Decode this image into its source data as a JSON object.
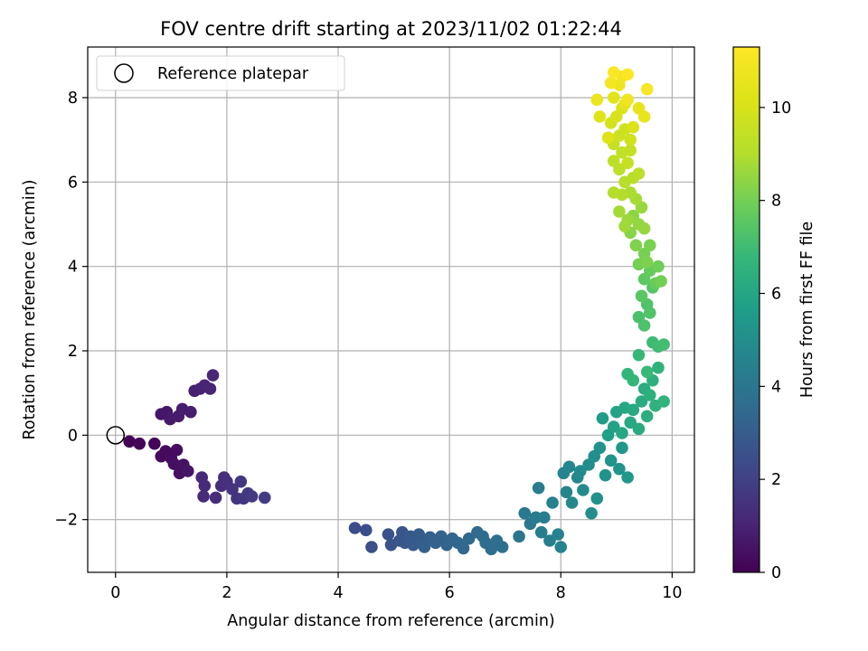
{
  "chart_data": {
    "type": "scatter",
    "title": "FOV centre drift starting at 2023/11/02 01:22:44",
    "xlabel": "Angular distance from reference (arcmin)",
    "ylabel": "Rotation from reference (arcmin)",
    "xlim": [
      -0.5,
      10.4
    ],
    "ylim": [
      -3.25,
      9.2
    ],
    "xticks": [
      "0",
      "2",
      "4",
      "6",
      "8",
      "10"
    ],
    "yticks": [
      "−2",
      "0",
      "2",
      "4",
      "6",
      "8"
    ],
    "grid": true,
    "legend": {
      "position": "top-left",
      "label": "Reference platepar"
    },
    "reference_point": {
      "x": 0,
      "y": 0
    },
    "colorbar": {
      "label": "Hours from first FF file",
      "colormap": "viridis",
      "range": [
        0,
        11.3
      ],
      "ticks": [
        "0",
        "2",
        "4",
        "6",
        "8",
        "10"
      ]
    },
    "series": [
      {
        "points": [
          {
            "x": 0.25,
            "y": -0.15,
            "c": 0.05
          },
          {
            "x": 0.43,
            "y": -0.2,
            "c": 0.1
          },
          {
            "x": 0.7,
            "y": -0.2,
            "c": 0.15
          },
          {
            "x": 0.82,
            "y": -0.5,
            "c": 0.2
          },
          {
            "x": 0.9,
            "y": -0.38,
            "c": 0.25
          },
          {
            "x": 1.0,
            "y": -0.55,
            "c": 0.3
          },
          {
            "x": 1.1,
            "y": -0.35,
            "c": 0.35
          },
          {
            "x": 1.05,
            "y": -0.68,
            "c": 0.4
          },
          {
            "x": 1.15,
            "y": -0.9,
            "c": 0.45
          },
          {
            "x": 1.22,
            "y": -0.7,
            "c": 0.5
          },
          {
            "x": 1.3,
            "y": -0.85,
            "c": 0.55
          },
          {
            "x": 0.82,
            "y": 0.5,
            "c": 0.6
          },
          {
            "x": 0.92,
            "y": 0.55,
            "c": 0.65
          },
          {
            "x": 0.98,
            "y": 0.38,
            "c": 0.7
          },
          {
            "x": 1.13,
            "y": 0.45,
            "c": 0.75
          },
          {
            "x": 1.2,
            "y": 0.62,
            "c": 0.8
          },
          {
            "x": 1.35,
            "y": 0.55,
            "c": 0.85
          },
          {
            "x": 1.42,
            "y": 1.05,
            "c": 0.9
          },
          {
            "x": 1.52,
            "y": 1.1,
            "c": 0.95
          },
          {
            "x": 1.6,
            "y": 1.18,
            "c": 1.0
          },
          {
            "x": 1.7,
            "y": 1.1,
            "c": 1.05
          },
          {
            "x": 1.75,
            "y": 1.42,
            "c": 1.1
          },
          {
            "x": 1.55,
            "y": -1.0,
            "c": 1.15
          },
          {
            "x": 1.6,
            "y": -1.2,
            "c": 1.2
          },
          {
            "x": 1.58,
            "y": -1.45,
            "c": 1.25
          },
          {
            "x": 1.8,
            "y": -1.48,
            "c": 1.3
          },
          {
            "x": 1.9,
            "y": -1.2,
            "c": 1.35
          },
          {
            "x": 1.95,
            "y": -1.0,
            "c": 1.4
          },
          {
            "x": 2.0,
            "y": -1.1,
            "c": 1.45
          },
          {
            "x": 2.1,
            "y": -1.28,
            "c": 1.5
          },
          {
            "x": 2.18,
            "y": -1.5,
            "c": 1.55
          },
          {
            "x": 2.25,
            "y": -1.1,
            "c": 1.6
          },
          {
            "x": 2.3,
            "y": -1.5,
            "c": 1.65
          },
          {
            "x": 2.38,
            "y": -1.38,
            "c": 1.7
          },
          {
            "x": 2.45,
            "y": -1.45,
            "c": 1.75
          },
          {
            "x": 2.68,
            "y": -1.48,
            "c": 1.8
          },
          {
            "x": 4.3,
            "y": -2.2,
            "c": 2.4
          },
          {
            "x": 4.5,
            "y": -2.25,
            "c": 2.45
          },
          {
            "x": 4.6,
            "y": -2.65,
            "c": 2.5
          },
          {
            "x": 4.9,
            "y": -2.35,
            "c": 2.6
          },
          {
            "x": 4.95,
            "y": -2.6,
            "c": 2.65
          },
          {
            "x": 5.1,
            "y": -2.5,
            "c": 2.7
          },
          {
            "x": 5.15,
            "y": -2.3,
            "c": 2.75
          },
          {
            "x": 5.2,
            "y": -2.55,
            "c": 2.8
          },
          {
            "x": 5.3,
            "y": -2.4,
            "c": 2.85
          },
          {
            "x": 5.35,
            "y": -2.6,
            "c": 2.9
          },
          {
            "x": 5.45,
            "y": -2.35,
            "c": 2.95
          },
          {
            "x": 5.5,
            "y": -2.5,
            "c": 3.0
          },
          {
            "x": 5.55,
            "y": -2.65,
            "c": 3.05
          },
          {
            "x": 5.65,
            "y": -2.42,
            "c": 3.1
          },
          {
            "x": 5.75,
            "y": -2.55,
            "c": 3.15
          },
          {
            "x": 5.85,
            "y": -2.4,
            "c": 3.2
          },
          {
            "x": 5.95,
            "y": -2.6,
            "c": 3.25
          },
          {
            "x": 6.05,
            "y": -2.45,
            "c": 3.3
          },
          {
            "x": 6.15,
            "y": -2.55,
            "c": 3.35
          },
          {
            "x": 6.25,
            "y": -2.68,
            "c": 3.4
          },
          {
            "x": 6.35,
            "y": -2.45,
            "c": 3.45
          },
          {
            "x": 6.5,
            "y": -2.3,
            "c": 3.5
          },
          {
            "x": 6.6,
            "y": -2.4,
            "c": 3.55
          },
          {
            "x": 6.65,
            "y": -2.55,
            "c": 3.6
          },
          {
            "x": 6.75,
            "y": -2.7,
            "c": 3.65
          },
          {
            "x": 6.85,
            "y": -2.5,
            "c": 3.7
          },
          {
            "x": 6.95,
            "y": -2.65,
            "c": 3.75
          },
          {
            "x": 7.25,
            "y": -2.4,
            "c": 4.0
          },
          {
            "x": 7.35,
            "y": -1.85,
            "c": 4.1
          },
          {
            "x": 7.45,
            "y": -2.1,
            "c": 4.15
          },
          {
            "x": 7.55,
            "y": -1.95,
            "c": 4.2
          },
          {
            "x": 7.6,
            "y": -1.25,
            "c": 4.25
          },
          {
            "x": 7.65,
            "y": -2.3,
            "c": 4.3
          },
          {
            "x": 7.7,
            "y": -1.95,
            "c": 4.35
          },
          {
            "x": 7.8,
            "y": -2.5,
            "c": 4.4
          },
          {
            "x": 7.85,
            "y": -1.6,
            "c": 4.45
          },
          {
            "x": 7.95,
            "y": -2.35,
            "c": 4.5
          },
          {
            "x": 8.0,
            "y": -2.65,
            "c": 4.55
          },
          {
            "x": 8.05,
            "y": -0.9,
            "c": 4.6
          },
          {
            "x": 8.1,
            "y": -1.35,
            "c": 4.65
          },
          {
            "x": 8.15,
            "y": -0.75,
            "c": 4.7
          },
          {
            "x": 8.2,
            "y": -1.6,
            "c": 4.75
          },
          {
            "x": 8.3,
            "y": -1.0,
            "c": 4.8
          },
          {
            "x": 8.35,
            "y": -0.85,
            "c": 4.85
          },
          {
            "x": 8.4,
            "y": -1.3,
            "c": 4.9
          },
          {
            "x": 8.5,
            "y": -0.7,
            "c": 4.95
          },
          {
            "x": 8.55,
            "y": -1.85,
            "c": 5.0
          },
          {
            "x": 8.6,
            "y": -0.5,
            "c": 5.05
          },
          {
            "x": 8.65,
            "y": -1.5,
            "c": 5.1
          },
          {
            "x": 8.7,
            "y": -0.3,
            "c": 5.15
          },
          {
            "x": 8.8,
            "y": -0.95,
            "c": 5.2
          },
          {
            "x": 8.9,
            "y": -0.6,
            "c": 5.25
          },
          {
            "x": 9.05,
            "y": -0.8,
            "c": 5.3
          },
          {
            "x": 9.1,
            "y": -0.3,
            "c": 5.35
          },
          {
            "x": 9.2,
            "y": -1.0,
            "c": 5.4
          },
          {
            "x": 8.75,
            "y": 0.4,
            "c": 5.6
          },
          {
            "x": 8.85,
            "y": 0.0,
            "c": 5.7
          },
          {
            "x": 8.95,
            "y": 0.2,
            "c": 5.8
          },
          {
            "x": 9.0,
            "y": 0.55,
            "c": 5.9
          },
          {
            "x": 9.1,
            "y": 0.05,
            "c": 6.0
          },
          {
            "x": 9.15,
            "y": 0.65,
            "c": 6.05
          },
          {
            "x": 9.25,
            "y": 0.3,
            "c": 6.1
          },
          {
            "x": 9.3,
            "y": 0.6,
            "c": 6.15
          },
          {
            "x": 9.4,
            "y": 0.15,
            "c": 6.2
          },
          {
            "x": 9.45,
            "y": 0.8,
            "c": 6.25
          },
          {
            "x": 9.5,
            "y": 1.1,
            "c": 6.3
          },
          {
            "x": 9.55,
            "y": 0.45,
            "c": 6.35
          },
          {
            "x": 9.6,
            "y": 0.95,
            "c": 6.4
          },
          {
            "x": 9.65,
            "y": 1.3,
            "c": 6.45
          },
          {
            "x": 9.7,
            "y": 0.7,
            "c": 6.5
          },
          {
            "x": 9.75,
            "y": 1.6,
            "c": 6.55
          },
          {
            "x": 9.85,
            "y": 0.8,
            "c": 6.6
          },
          {
            "x": 9.2,
            "y": 1.45,
            "c": 6.7
          },
          {
            "x": 9.3,
            "y": 1.3,
            "c": 6.75
          },
          {
            "x": 9.4,
            "y": 1.9,
            "c": 6.8
          },
          {
            "x": 9.55,
            "y": 1.5,
            "c": 6.85
          },
          {
            "x": 9.65,
            "y": 2.2,
            "c": 6.95
          },
          {
            "x": 9.75,
            "y": 2.1,
            "c": 7.0
          },
          {
            "x": 9.85,
            "y": 2.15,
            "c": 7.05
          },
          {
            "x": 9.4,
            "y": 2.8,
            "c": 7.2
          },
          {
            "x": 9.5,
            "y": 2.6,
            "c": 7.25
          },
          {
            "x": 9.55,
            "y": 3.1,
            "c": 7.3
          },
          {
            "x": 9.6,
            "y": 2.9,
            "c": 7.35
          },
          {
            "x": 9.65,
            "y": 3.5,
            "c": 7.4
          },
          {
            "x": 9.45,
            "y": 3.3,
            "c": 7.5
          },
          {
            "x": 9.5,
            "y": 3.7,
            "c": 7.6
          },
          {
            "x": 9.6,
            "y": 3.9,
            "c": 7.7
          },
          {
            "x": 9.7,
            "y": 3.6,
            "c": 7.8
          },
          {
            "x": 9.75,
            "y": 4.0,
            "c": 7.9
          },
          {
            "x": 9.8,
            "y": 3.65,
            "c": 7.95
          },
          {
            "x": 9.4,
            "y": 4.05,
            "c": 8.0
          },
          {
            "x": 9.5,
            "y": 4.3,
            "c": 8.05
          },
          {
            "x": 9.6,
            "y": 4.5,
            "c": 8.1
          },
          {
            "x": 9.55,
            "y": 4.1,
            "c": 8.15
          },
          {
            "x": 9.35,
            "y": 4.5,
            "c": 8.2
          },
          {
            "x": 9.25,
            "y": 4.8,
            "c": 8.3
          },
          {
            "x": 9.3,
            "y": 5.2,
            "c": 8.4
          },
          {
            "x": 9.4,
            "y": 5.0,
            "c": 8.5
          },
          {
            "x": 9.5,
            "y": 4.9,
            "c": 8.55
          },
          {
            "x": 9.45,
            "y": 5.4,
            "c": 8.6
          },
          {
            "x": 9.2,
            "y": 5.1,
            "c": 8.65
          },
          {
            "x": 9.15,
            "y": 4.95,
            "c": 8.7
          },
          {
            "x": 9.05,
            "y": 5.3,
            "c": 8.75
          },
          {
            "x": 9.35,
            "y": 5.6,
            "c": 8.8
          },
          {
            "x": 9.25,
            "y": 5.75,
            "c": 8.9
          },
          {
            "x": 9.1,
            "y": 5.7,
            "c": 9.0
          },
          {
            "x": 8.95,
            "y": 5.75,
            "c": 9.05
          },
          {
            "x": 9.15,
            "y": 6.0,
            "c": 9.1
          },
          {
            "x": 9.3,
            "y": 6.1,
            "c": 9.15
          },
          {
            "x": 9.4,
            "y": 6.2,
            "c": 9.2
          },
          {
            "x": 9.05,
            "y": 6.3,
            "c": 9.25
          },
          {
            "x": 8.95,
            "y": 6.5,
            "c": 9.3
          },
          {
            "x": 9.1,
            "y": 6.7,
            "c": 9.4
          },
          {
            "x": 9.25,
            "y": 6.75,
            "c": 9.45
          },
          {
            "x": 9.2,
            "y": 6.45,
            "c": 9.5
          },
          {
            "x": 8.95,
            "y": 6.9,
            "c": 9.55
          },
          {
            "x": 9.05,
            "y": 7.1,
            "c": 9.65
          },
          {
            "x": 9.15,
            "y": 7.25,
            "c": 9.75
          },
          {
            "x": 9.25,
            "y": 7.0,
            "c": 9.8
          },
          {
            "x": 8.9,
            "y": 7.4,
            "c": 9.9
          },
          {
            "x": 9.0,
            "y": 7.55,
            "c": 10.0
          },
          {
            "x": 9.1,
            "y": 7.75,
            "c": 10.1
          },
          {
            "x": 9.3,
            "y": 7.3,
            "c": 10.15
          },
          {
            "x": 8.85,
            "y": 7.05,
            "c": 10.2
          },
          {
            "x": 8.7,
            "y": 7.55,
            "c": 10.3
          },
          {
            "x": 8.95,
            "y": 8.0,
            "c": 10.4
          },
          {
            "x": 9.15,
            "y": 7.85,
            "c": 10.5
          },
          {
            "x": 9.4,
            "y": 7.75,
            "c": 10.55
          },
          {
            "x": 9.5,
            "y": 7.55,
            "c": 10.6
          },
          {
            "x": 8.65,
            "y": 7.95,
            "c": 10.7
          },
          {
            "x": 9.05,
            "y": 8.3,
            "c": 10.8
          },
          {
            "x": 9.2,
            "y": 7.95,
            "c": 10.85
          },
          {
            "x": 9.1,
            "y": 8.5,
            "c": 10.95
          },
          {
            "x": 8.9,
            "y": 8.35,
            "c": 11.0
          },
          {
            "x": 9.55,
            "y": 8.2,
            "c": 11.1
          },
          {
            "x": 8.95,
            "y": 8.6,
            "c": 11.2
          },
          {
            "x": 9.2,
            "y": 8.55,
            "c": 11.25
          }
        ]
      }
    ]
  }
}
